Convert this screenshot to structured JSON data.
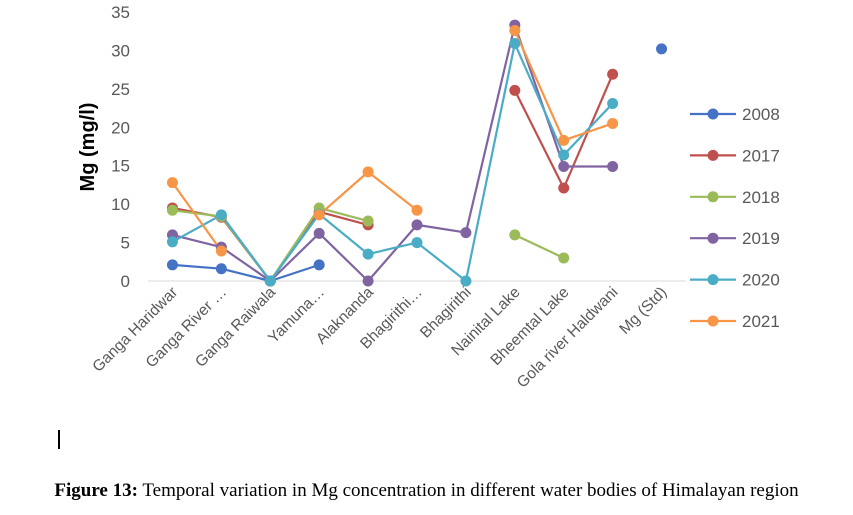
{
  "caption": {
    "label": "Figure 13:",
    "text": " Temporal variation in Mg concentration in different water bodies of Himalayan region"
  },
  "chart_data": {
    "type": "line",
    "title": "",
    "xlabel": "",
    "ylabel": "Mg (mg/l)",
    "ylim": [
      0,
      35
    ],
    "yticks": [
      0,
      5,
      10,
      15,
      20,
      25,
      30,
      35
    ],
    "grid": false,
    "legend_position": "right",
    "categories": [
      "Ganga Haridwar",
      "Ganga River …",
      "Ganga Raiwala",
      "Yamuna…",
      "Alaknanda",
      "Bhagirithi…",
      "Bhagirithi",
      "Nainital Lake",
      "Bheemtal Lake",
      "Gola river Haldwani",
      "Mg (Std)"
    ],
    "series": [
      {
        "name": "2008",
        "color": "#4472c4",
        "values": [
          2.1,
          1.6,
          0,
          2.1,
          null,
          null,
          null,
          null,
          null,
          null,
          30.2
        ]
      },
      {
        "name": "2017",
        "color": "#c0504d",
        "values": [
          9.5,
          8.3,
          0,
          9.0,
          7.3,
          null,
          null,
          24.8,
          12.1,
          26.9,
          null
        ]
      },
      {
        "name": "2018",
        "color": "#9bbb59",
        "values": [
          9.2,
          8.4,
          0,
          9.5,
          7.8,
          null,
          null,
          6.0,
          3.0,
          null,
          null
        ]
      },
      {
        "name": "2019",
        "color": "#8064a2",
        "values": [
          6.0,
          4.4,
          0,
          6.2,
          0,
          7.3,
          6.3,
          33.3,
          14.9,
          14.9,
          null
        ]
      },
      {
        "name": "2020",
        "color": "#4bacc6",
        "values": [
          5.1,
          8.6,
          0,
          8.7,
          3.5,
          5.0,
          0,
          30.9,
          16.4,
          23.1,
          null
        ]
      },
      {
        "name": "2021",
        "color": "#f79646",
        "values": [
          12.8,
          3.9,
          null,
          8.6,
          14.2,
          9.2,
          null,
          32.6,
          18.3,
          20.5,
          null
        ]
      }
    ]
  }
}
